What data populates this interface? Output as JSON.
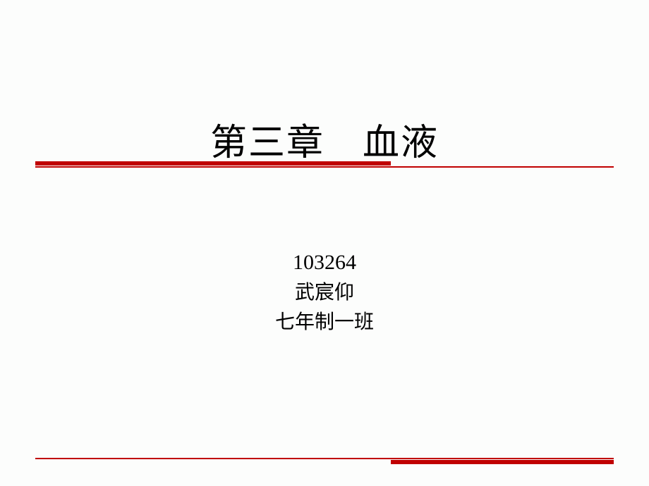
{
  "slide": {
    "title": "第三章　血液",
    "student_id": "103264",
    "student_name": "武宸仰",
    "class_name": "七年制一班"
  },
  "styling": {
    "background_color": "#fcfdfc",
    "title_color": "#000000",
    "title_fontsize": 52,
    "subtitle_color": "#000000",
    "subtitle_fontsize": 30,
    "rule_color": "#c00000",
    "rule_thick_height": 6,
    "rule_thin_height": 2,
    "rule_top_thick_width": 504,
    "rule_bottom_thick_width": 316,
    "rule_full_width": 820,
    "font_family": "SimSun"
  }
}
